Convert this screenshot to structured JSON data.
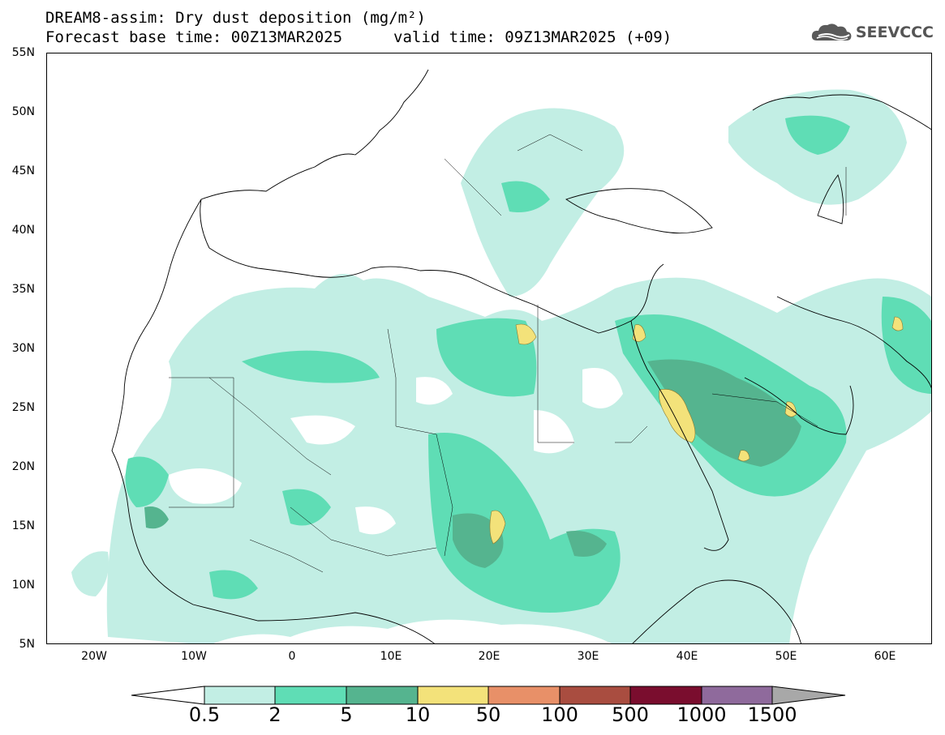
{
  "header": {
    "title_line1": "DREAM8-assim: Dry dust deposition (mg/m²)",
    "title_line2": "Forecast base time: 00Z13MAR2025",
    "title_line3": "valid time: 09Z13MAR2025 (+09)",
    "logo_text": "SEEVCCC",
    "logo_icon": "cloud-icon"
  },
  "map": {
    "lat_labels": [
      "55N",
      "50N",
      "45N",
      "40N",
      "35N",
      "30N",
      "25N",
      "20N",
      "15N",
      "10N",
      "5N"
    ],
    "lon_labels": [
      "20W",
      "10W",
      "0",
      "10E",
      "20E",
      "30E",
      "40E",
      "50E",
      "60E"
    ]
  },
  "colorbar": {
    "labels": [
      "0.5",
      "2",
      "5",
      "10",
      "50",
      "100",
      "500",
      "1000",
      "1500"
    ],
    "colors": [
      "#ffffff",
      "#c2eee4",
      "#5fddb5",
      "#55b48f",
      "#f3e27a",
      "#e89068",
      "#a94d40",
      "#7a0d2e",
      "#8f6a9c",
      "#a8a8a8"
    ]
  }
}
